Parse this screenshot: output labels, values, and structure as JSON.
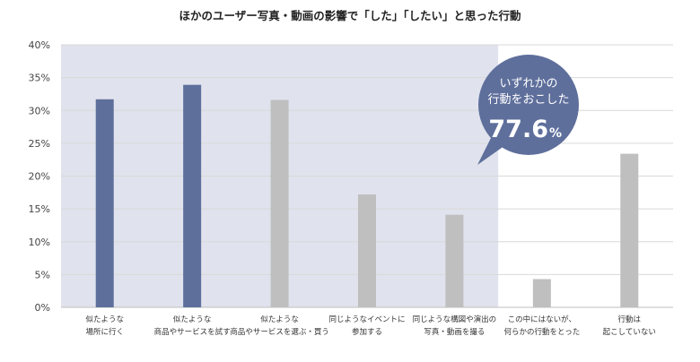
{
  "chart_data": {
    "type": "bar",
    "title": "ほかのユーザー写真・動画の影響で「した」「したい」と思った行動",
    "xlabel": "",
    "ylabel": "",
    "ylim": [
      0,
      40
    ],
    "yticks": [
      "0%",
      "5%",
      "10%",
      "15%",
      "20%",
      "25%",
      "30%",
      "35%",
      "40%"
    ],
    "grid": true,
    "categories": [
      [
        "似たような",
        "場所に行く"
      ],
      [
        "似たような",
        "商品やサービスを試す"
      ],
      [
        "似たような",
        "商品やサービスを選ぶ・買う"
      ],
      [
        "同じようなイベントに",
        "参加する"
      ],
      [
        "同じような構図や演出の",
        "写真・動画を撮る"
      ],
      [
        "この中にはないが、",
        "何らかの行動をとった"
      ],
      [
        "行動は",
        "起こしていない"
      ]
    ],
    "values": [
      31.7,
      33.9,
      31.6,
      17.2,
      14.1,
      4.3,
      23.4
    ],
    "bar_colors": [
      "#5f6f9c",
      "#5f6f9c",
      "#bfbfbf",
      "#bfbfbf",
      "#bfbfbf",
      "#bfbfbf",
      "#bfbfbf"
    ],
    "highlight_color": "#e0e3ed",
    "highlight_categories": 5,
    "annotation": {
      "line1": "いずれかの",
      "line2": "行動をおこした",
      "value": "77.6",
      "unit": "%",
      "color": "#5f6f9c"
    }
  }
}
